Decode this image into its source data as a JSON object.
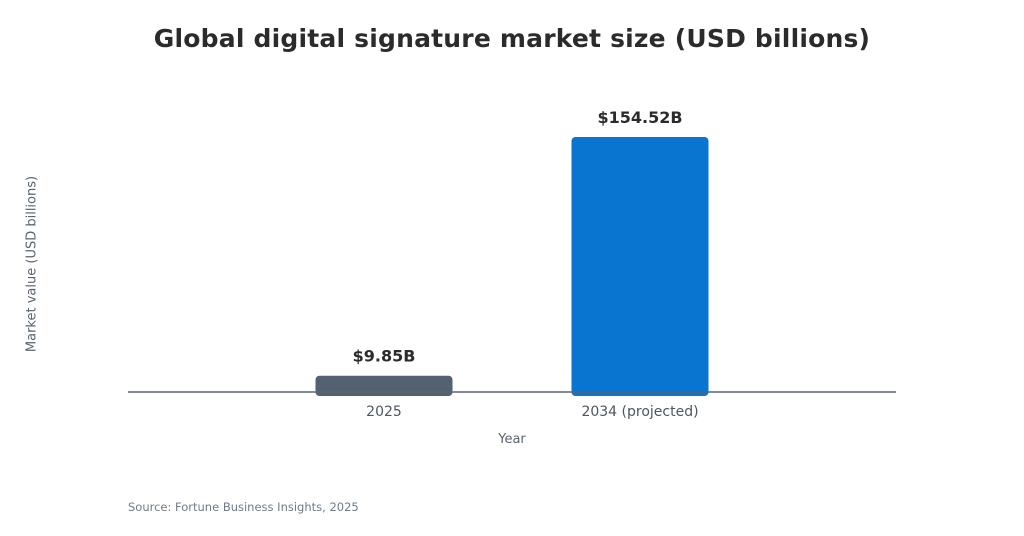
{
  "chart_data": {
    "type": "bar",
    "title": "Global digital signature market size (USD billions)",
    "xlabel": "Year",
    "ylabel": "Market value (USD billions)",
    "categories": [
      "2025",
      "2034 (projected)"
    ],
    "values": [
      9.85,
      154.52
    ],
    "data_labels": [
      "$9.85B",
      "$154.52B"
    ],
    "bar_colors": [
      "#546270",
      "#0a75d0"
    ],
    "ylim": [
      0,
      154.52
    ],
    "grid": false,
    "legend": "none"
  },
  "source": "Source: Fortune Business Insights, 2025",
  "colors": {
    "baseline": "#5a6470",
    "title": "#2b2b2b"
  }
}
